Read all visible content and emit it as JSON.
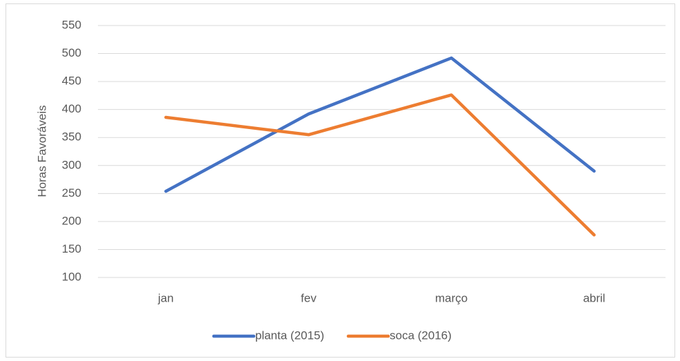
{
  "chart_data": {
    "type": "line",
    "y_label": "Horas Favoráveis",
    "categories": [
      "jan",
      "fev",
      "março",
      "abril"
    ],
    "series": [
      {
        "name": "planta (2015)",
        "color": "#4472c4",
        "values": [
          254,
          392,
          492,
          290
        ]
      },
      {
        "name": "soca (2016)",
        "color": "#ed7d31",
        "values": [
          386,
          355,
          426,
          176
        ]
      }
    ],
    "ylim": [
      100,
      550
    ],
    "yticks": [
      100,
      150,
      200,
      250,
      300,
      350,
      400,
      450,
      500,
      550
    ],
    "grid": true,
    "legend": "bottom"
  }
}
